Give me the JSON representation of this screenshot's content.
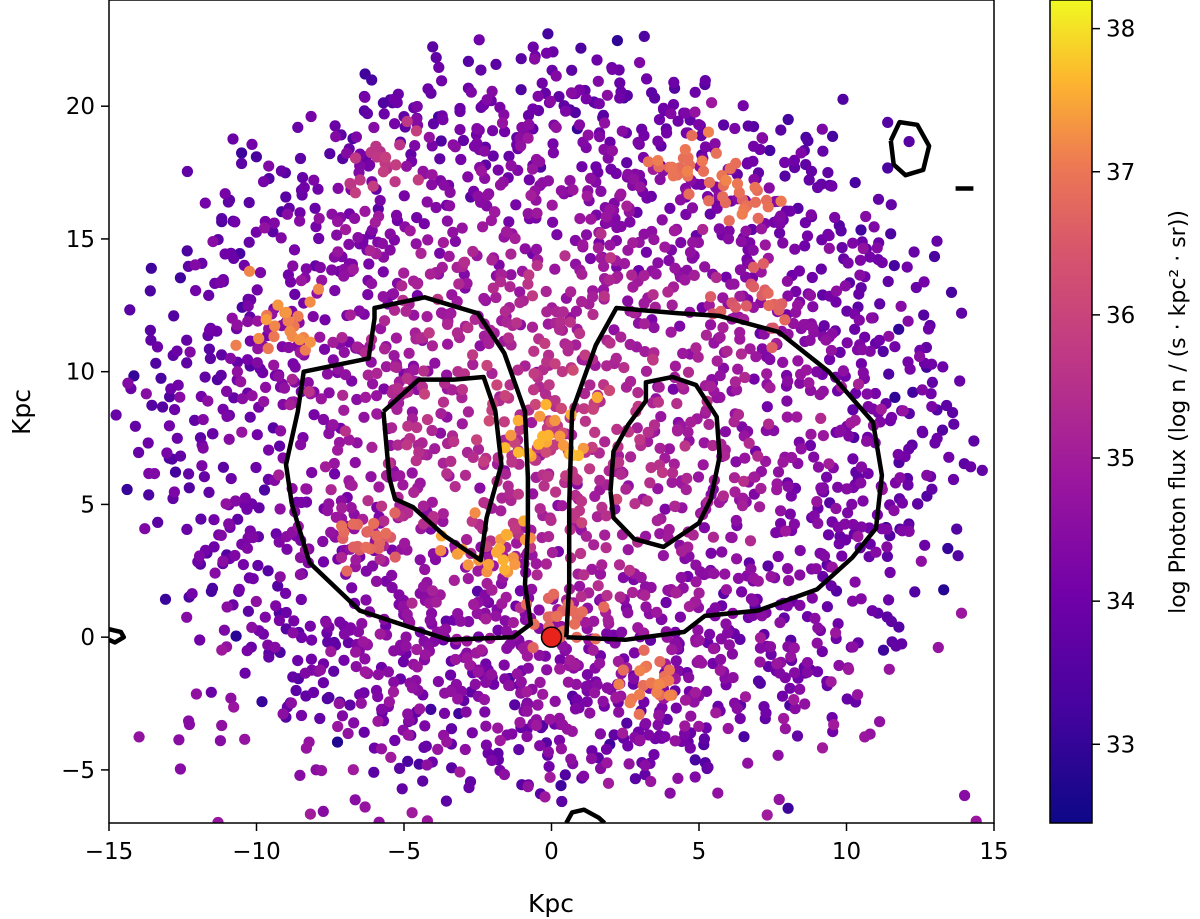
{
  "chart_data": {
    "type": "scatter",
    "xlabel": "Kpc",
    "ylabel": "Kpc",
    "xlim": [
      -15,
      15
    ],
    "ylim": [
      -7,
      24
    ],
    "x_ticks": [
      -15,
      -10,
      -5,
      0,
      5,
      10,
      15
    ],
    "y_ticks": [
      -5,
      0,
      5,
      10,
      15,
      20
    ],
    "x_tick_labels": [
      "−15",
      "−10",
      "−5",
      "0",
      "5",
      "10",
      "15"
    ],
    "y_tick_labels": [
      "−5",
      "0",
      "5",
      "10",
      "15",
      "20"
    ],
    "grid": false,
    "colorbar": {
      "label": "log Photon flux (log n / (s · kpc² · sr))",
      "range": [
        32.45,
        38.2
      ],
      "ticks": [
        33,
        34,
        35,
        36,
        37,
        38
      ],
      "tick_labels": [
        "33",
        "34",
        "35",
        "36",
        "37",
        "38"
      ],
      "colormap": "plasma"
    },
    "marker": {
      "x": 0,
      "y": 0,
      "color": "#e8231c"
    },
    "hotspots": [
      {
        "x": -9.3,
        "y": 11.9,
        "value": 37.4
      },
      {
        "x": 4.6,
        "y": 17.7,
        "value": 37.2
      },
      {
        "x": 6.3,
        "y": 16.5,
        "value": 37.1
      },
      {
        "x": -0.2,
        "y": 7.8,
        "value": 37.7
      },
      {
        "x": -1.9,
        "y": 3.5,
        "value": 37.6
      },
      {
        "x": -6.0,
        "y": 3.6,
        "value": 36.9
      },
      {
        "x": 3.5,
        "y": -1.5,
        "value": 37.2
      },
      {
        "x": 7.0,
        "y": 12.5,
        "value": 36.8
      },
      {
        "x": -5.5,
        "y": 18.0,
        "value": 35.9
      },
      {
        "x": 0.3,
        "y": 0.6,
        "value": 37.0
      }
    ],
    "contours": [
      {
        "name": "outer-left",
        "points": [
          [
            -8.8,
            5
          ],
          [
            -9,
            6.5
          ],
          [
            -8.6,
            8.5
          ],
          [
            -8.4,
            10
          ],
          [
            -6.2,
            10.5
          ],
          [
            -6,
            12
          ],
          [
            -6,
            12.4
          ],
          [
            -4.3,
            12.8
          ],
          [
            -2.5,
            12.2
          ],
          [
            -1.6,
            10.7
          ],
          [
            -0.9,
            8.5
          ],
          [
            -0.8,
            6
          ],
          [
            -0.8,
            4
          ],
          [
            -0.9,
            2
          ],
          [
            -0.7,
            0.5
          ],
          [
            -1.3,
            0
          ],
          [
            -3.5,
            -0.1
          ],
          [
            -6.5,
            1.0
          ],
          [
            -8.2,
            2.8
          ],
          [
            -8.8,
            5
          ]
        ]
      },
      {
        "name": "outer-right",
        "points": [
          [
            0.5,
            0
          ],
          [
            0.6,
            2
          ],
          [
            0.6,
            5
          ],
          [
            0.7,
            8.5
          ],
          [
            1.5,
            11
          ],
          [
            2.2,
            12.4
          ],
          [
            4.3,
            12.2
          ],
          [
            5.7,
            12.1
          ],
          [
            7.7,
            11.5
          ],
          [
            9.4,
            10
          ],
          [
            10.9,
            8.1
          ],
          [
            11.2,
            6.1
          ],
          [
            11,
            4.1
          ],
          [
            10.2,
            3
          ],
          [
            9,
            1.8
          ],
          [
            7,
            1.0
          ],
          [
            5.2,
            0.8
          ],
          [
            4.5,
            0.2
          ],
          [
            2.5,
            -0.1
          ],
          [
            0.5,
            0
          ]
        ]
      },
      {
        "name": "inner-left",
        "points": [
          [
            -5.7,
            8.5
          ],
          [
            -5.5,
            6
          ],
          [
            -5.3,
            5.2
          ],
          [
            -4.7,
            4.9
          ],
          [
            -3.6,
            3.8
          ],
          [
            -2.4,
            2.9
          ],
          [
            -2.2,
            4.5
          ],
          [
            -1.7,
            6.5
          ],
          [
            -1.9,
            8.5
          ],
          [
            -2.3,
            9.8
          ],
          [
            -3.3,
            9.7
          ],
          [
            -4.5,
            9.7
          ],
          [
            -5.7,
            8.5
          ]
        ]
      },
      {
        "name": "inner-right",
        "points": [
          [
            2,
            5.5
          ],
          [
            2.1,
            7
          ],
          [
            2.6,
            8
          ],
          [
            3.2,
            8.9
          ],
          [
            3.2,
            9.6
          ],
          [
            4.1,
            9.8
          ],
          [
            4.9,
            9.5
          ],
          [
            5.6,
            8.3
          ],
          [
            5.7,
            6.8
          ],
          [
            5.4,
            5.2
          ],
          [
            5.0,
            4.3
          ],
          [
            3.8,
            3.4
          ],
          [
            2.8,
            3.7
          ],
          [
            2.1,
            4.5
          ],
          [
            2,
            5.5
          ]
        ]
      },
      {
        "name": "small-top-right",
        "points": [
          [
            11.5,
            18.7
          ],
          [
            11.8,
            19.4
          ],
          [
            12.4,
            19.3
          ],
          [
            12.8,
            18.5
          ],
          [
            12.6,
            17.6
          ],
          [
            12.0,
            17.4
          ],
          [
            11.6,
            17.8
          ],
          [
            11.5,
            18.7
          ]
        ]
      },
      {
        "name": "small-bottom",
        "points": [
          [
            0.5,
            -7
          ],
          [
            0.7,
            -6.6
          ],
          [
            1.1,
            -6.5
          ],
          [
            1.6,
            -6.8
          ],
          [
            1.8,
            -7
          ]
        ]
      },
      {
        "name": "small-left",
        "points": [
          [
            -15,
            0.3
          ],
          [
            -14.6,
            0.2
          ],
          [
            -14.5,
            0
          ],
          [
            -14.8,
            -0.2
          ],
          [
            -15,
            -0.1
          ]
        ]
      },
      {
        "name": "small-right-dash",
        "points": [
          [
            13.7,
            16.9
          ],
          [
            14.3,
            16.9
          ]
        ]
      }
    ]
  }
}
